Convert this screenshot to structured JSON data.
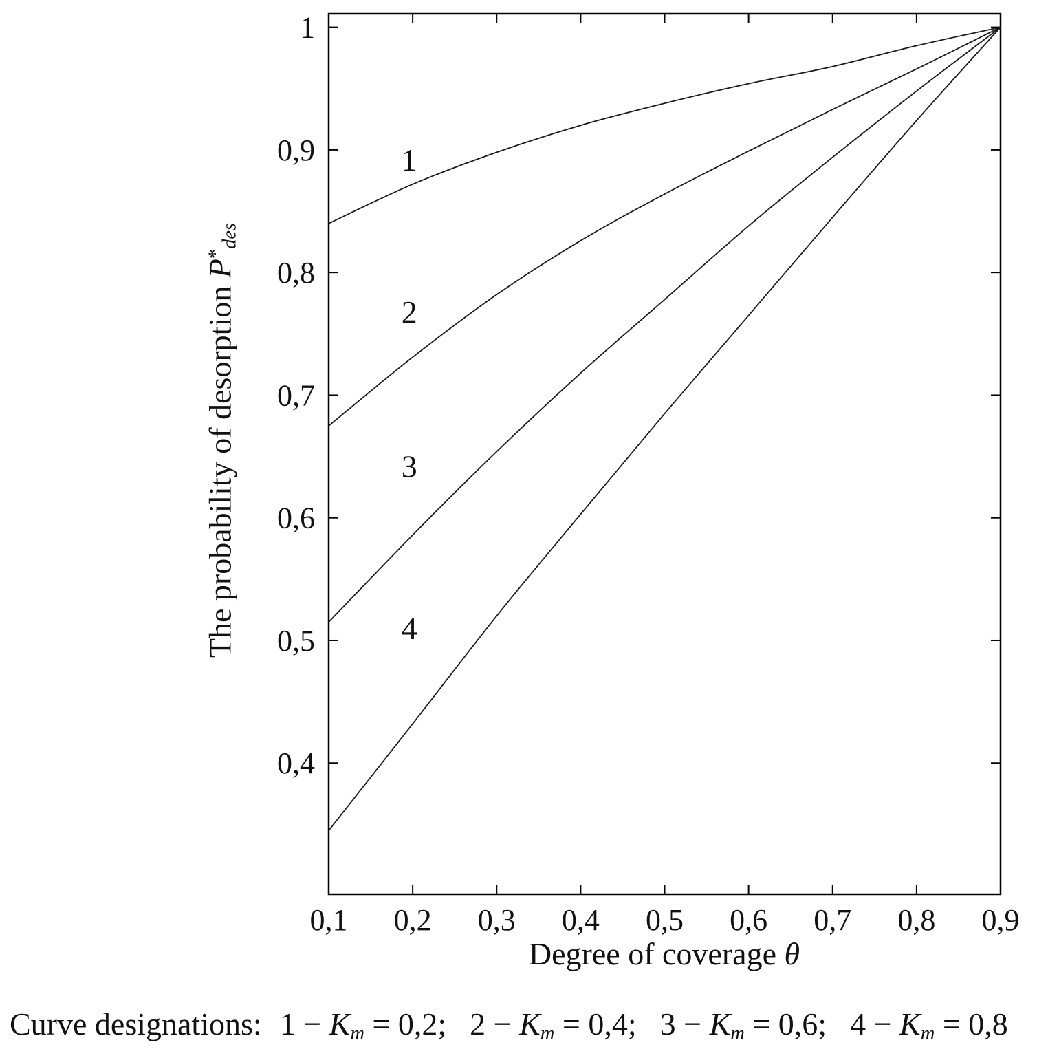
{
  "chart_data": {
    "type": "line",
    "x": [
      0.1,
      0.2,
      0.3,
      0.4,
      0.5,
      0.6,
      0.7,
      0.8,
      0.9
    ],
    "series": [
      {
        "name": "1",
        "km": "0,2",
        "values": [
          0.84,
          0.872,
          0.898,
          0.92,
          0.938,
          0.954,
          0.968,
          0.985,
          1.0
        ]
      },
      {
        "name": "2",
        "km": "0,4",
        "values": [
          0.675,
          0.731,
          0.782,
          0.826,
          0.864,
          0.899,
          0.933,
          0.966,
          1.0
        ]
      },
      {
        "name": "3",
        "km": "0,6",
        "values": [
          0.515,
          0.586,
          0.654,
          0.718,
          0.778,
          0.838,
          0.894,
          0.948,
          1.0
        ]
      },
      {
        "name": "4",
        "km": "0,8",
        "values": [
          0.345,
          0.432,
          0.52,
          0.603,
          0.685,
          0.765,
          0.845,
          0.924,
          1.0
        ]
      }
    ],
    "x_tick_labels": [
      "0,1",
      "0,2",
      "0,3",
      "0,4",
      "0,5",
      "0,6",
      "0,7",
      "0,8",
      "0,9"
    ],
    "y_ticks": [
      0.4,
      0.5,
      0.6,
      0.7,
      0.8,
      0.9,
      1.0
    ],
    "y_tick_labels": [
      "0,4",
      "0,5",
      "0,6",
      "0,7",
      "0,8",
      "0,9",
      "1"
    ],
    "xlim": [
      0.1,
      0.9
    ],
    "ylim": [
      0.293,
      1.011
    ],
    "title": "",
    "xlabel_text": "Degree of coverage ",
    "xlabel_symbol": "θ",
    "ylabel_text": "The probability of desorption ",
    "ylabel_symbol": "P",
    "ylabel_sup": "*",
    "ylabel_sub": "des",
    "grid": false,
    "legend_position": "none",
    "curve_labels": [
      {
        "text": "1",
        "x": 0.196,
        "y": 0.891
      },
      {
        "text": "2",
        "x": 0.196,
        "y": 0.767
      },
      {
        "text": "3",
        "x": 0.196,
        "y": 0.641
      },
      {
        "text": "4",
        "x": 0.196,
        "y": 0.509
      }
    ],
    "caption": {
      "prefix": "Curve designations:",
      "items": [
        {
          "pre": "1 − ",
          "symbol": "K",
          "sub": "m",
          "post": " = 0,2;"
        },
        {
          "pre": "2 − ",
          "symbol": "K",
          "sub": "m",
          "post": " = 0,4;"
        },
        {
          "pre": "3 − ",
          "symbol": "K",
          "sub": "m",
          "post": " = 0,6;"
        },
        {
          "pre": "4 − ",
          "symbol": "K",
          "sub": "m",
          "post": " = 0,8"
        }
      ]
    },
    "colors": {
      "line": "#1a1a1a",
      "axis": "#000000",
      "background": "#ffffff"
    }
  }
}
